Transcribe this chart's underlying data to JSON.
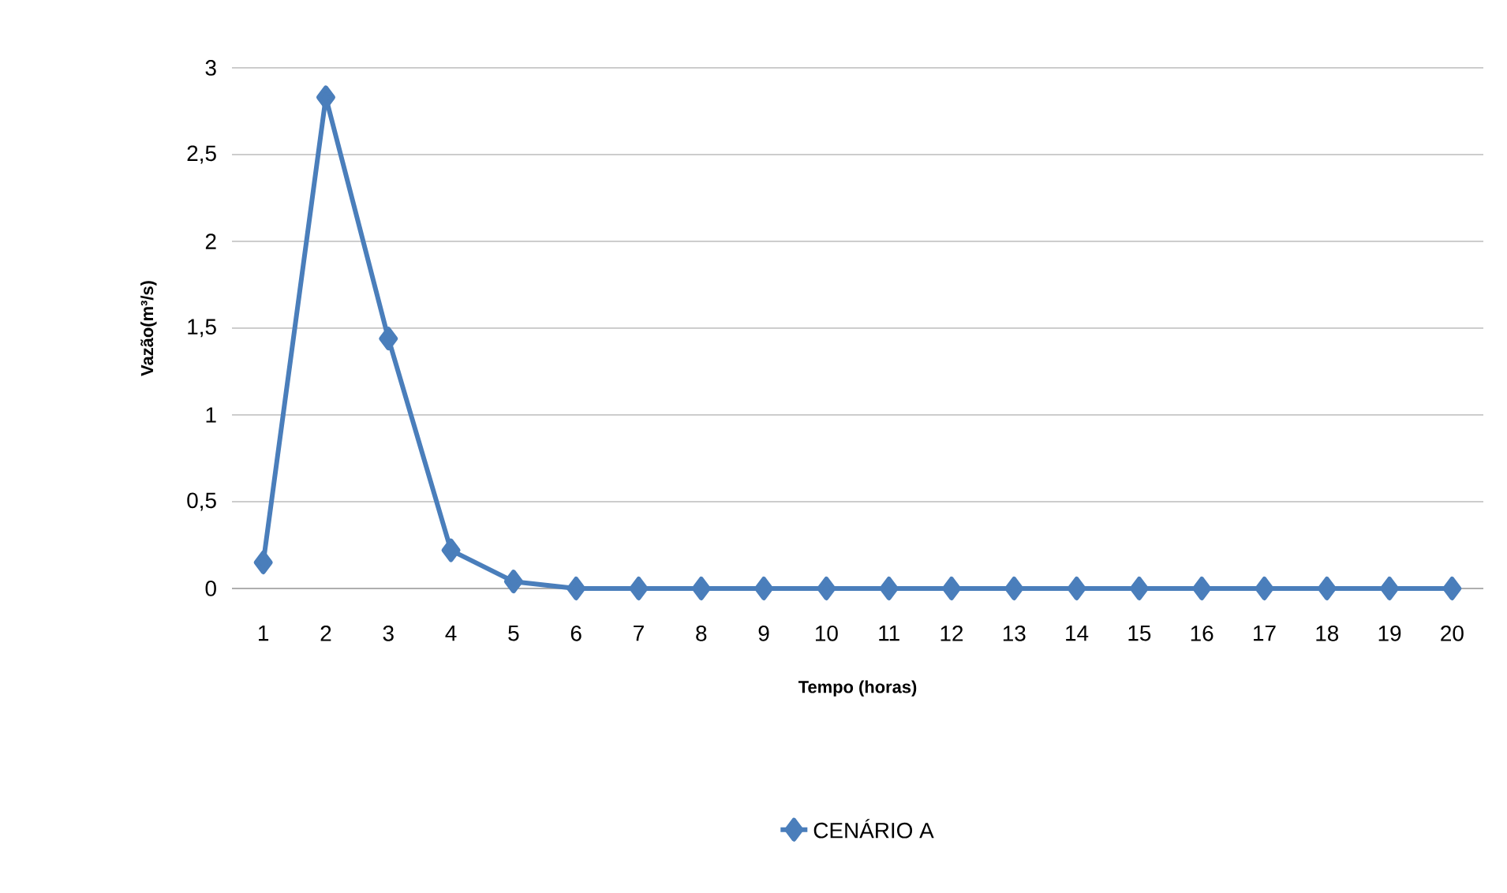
{
  "chart_data": {
    "type": "line",
    "xlabel": "Tempo (horas)",
    "ylabel": "Vazão(m³/s)",
    "categories": [
      "1",
      "2",
      "3",
      "4",
      "5",
      "6",
      "7",
      "8",
      "9",
      "10",
      "11",
      "12",
      "13",
      "14",
      "15",
      "16",
      "17",
      "18",
      "19",
      "20"
    ],
    "series": [
      {
        "name": "CENÁRIO A",
        "color": "#4a7ebb",
        "values": [
          0.15,
          2.83,
          1.44,
          0.22,
          0.04,
          0,
          0,
          0,
          0,
          0,
          0,
          0,
          0,
          0,
          0,
          0,
          0,
          0,
          0,
          0
        ]
      }
    ],
    "ylim": [
      0,
      3
    ],
    "yticks": [
      0,
      {
        "value": 0.5,
        "label": "0,5"
      },
      1,
      {
        "value": 1.5,
        "label": "1,5"
      },
      2,
      {
        "value": 2.5,
        "label": "2,5"
      },
      3
    ],
    "grid": "y",
    "legend": "bottom",
    "marker": "diamond",
    "line_style": "solid"
  }
}
